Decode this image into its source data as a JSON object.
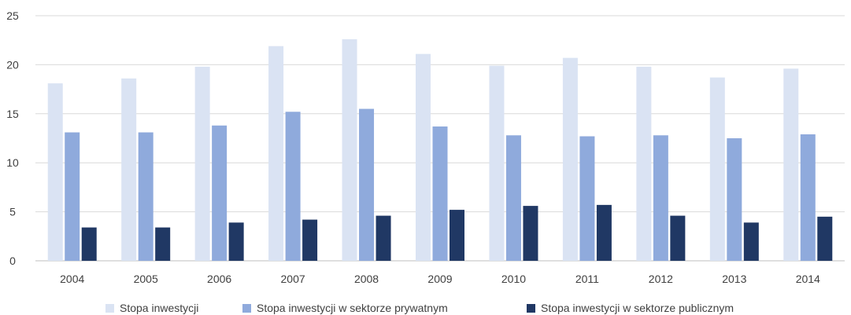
{
  "chart_data": {
    "type": "bar",
    "title": "",
    "xlabel": "",
    "ylabel": "",
    "ylim": [
      0,
      25
    ],
    "yticks": [
      0,
      5,
      10,
      15,
      20,
      25
    ],
    "grid": true,
    "legend_position": "bottom",
    "categories": [
      "2004",
      "2005",
      "2006",
      "2007",
      "2008",
      "2009",
      "2010",
      "2011",
      "2012",
      "2013",
      "2014"
    ],
    "series": [
      {
        "name": "Stopa inwestycji",
        "color": "#dae3f3",
        "values": [
          18.1,
          18.6,
          19.8,
          21.9,
          22.6,
          21.1,
          19.9,
          20.7,
          19.8,
          18.7,
          19.6
        ]
      },
      {
        "name": "Stopa inwestycji w sektorze prywatnym",
        "color": "#8faadc",
        "values": [
          13.1,
          13.1,
          13.8,
          15.2,
          15.5,
          13.7,
          12.8,
          12.7,
          12.8,
          12.5,
          12.9
        ]
      },
      {
        "name": "Stopa inwestycji w sektorze publicznym",
        "color": "#203864",
        "values": [
          3.4,
          3.4,
          3.9,
          4.2,
          4.6,
          5.2,
          5.6,
          5.7,
          4.6,
          3.9,
          4.5
        ]
      }
    ]
  }
}
